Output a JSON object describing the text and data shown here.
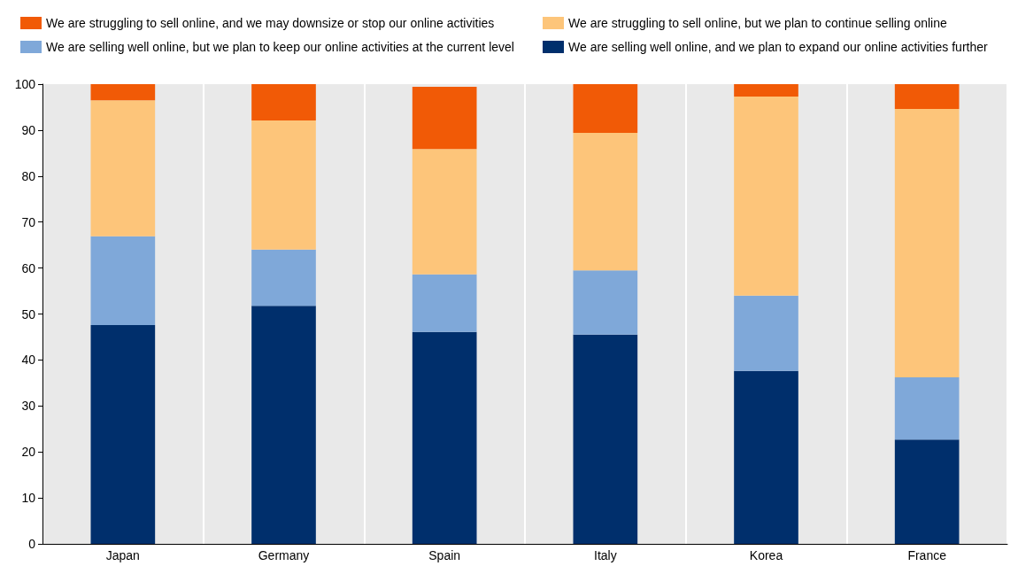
{
  "chart_data": {
    "type": "bar",
    "stacked": true,
    "categories": [
      "Japan",
      "Germany",
      "Spain",
      "Italy",
      "Korea",
      "France"
    ],
    "series": [
      {
        "name": "We are selling well online, and we plan to expand our online activities further",
        "color": "#002f6c",
        "values": [
          47.6,
          51.8,
          46.1,
          45.5,
          37.6,
          22.7
        ]
      },
      {
        "name": "We are selling well online, but we plan to keep our online activities at the current level",
        "color": "#7fa8d9",
        "values": [
          19.3,
          12.2,
          12.5,
          14.0,
          16.4,
          13.5
        ]
      },
      {
        "name": "We are struggling to sell online, but we plan to continue selling online",
        "color": "#fdc57a",
        "values": [
          29.6,
          28.1,
          27.3,
          29.9,
          43.3,
          58.4
        ]
      },
      {
        "name": "We are struggling to sell online, and we may downsize or stop our online activities",
        "color": "#f15a06",
        "values": [
          3.5,
          7.9,
          13.5,
          10.6,
          2.7,
          5.4
        ]
      }
    ],
    "ylim": [
      0,
      100
    ],
    "yticks": [
      0,
      10,
      20,
      30,
      40,
      50,
      60,
      70,
      80,
      90,
      100
    ],
    "grid": "x",
    "legend": "top"
  }
}
